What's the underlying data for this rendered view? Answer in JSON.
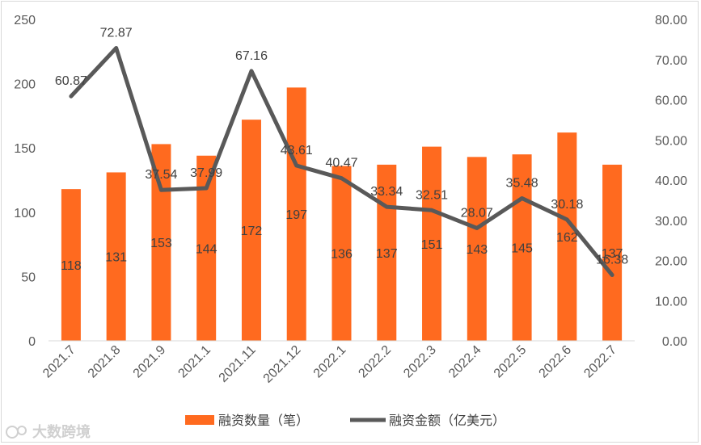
{
  "chart_data": {
    "type": "bar+line",
    "categories": [
      "2021.7",
      "2021.8",
      "2021.9",
      "2021.1",
      "2021.11",
      "2021.12",
      "2022.1",
      "2022.2",
      "2022.3",
      "2022.4",
      "2022.5",
      "2022.6",
      "2022.7"
    ],
    "series": [
      {
        "name": "融资数量（笔）",
        "type": "bar",
        "axis": "left",
        "color": "#ff6a1f",
        "values": [
          118,
          131,
          153,
          144,
          172,
          197,
          136,
          137,
          151,
          143,
          145,
          162,
          137
        ],
        "labels": [
          "118",
          "131",
          "153",
          "144",
          "172",
          "197",
          "136",
          "137",
          "151",
          "143",
          "145",
          "162",
          "137"
        ]
      },
      {
        "name": "融资金额（亿美元）",
        "type": "line",
        "axis": "right",
        "color": "#595959",
        "values": [
          60.87,
          72.87,
          37.54,
          37.99,
          67.16,
          43.61,
          40.47,
          33.34,
          32.51,
          28.07,
          35.48,
          30.18,
          16.38
        ],
        "labels": [
          "60.87",
          "72.87",
          "37.54",
          "37.99",
          "67.16",
          "43.61",
          "40.47",
          "33.34",
          "32.51",
          "28.07",
          "35.48",
          "30.18",
          "16.38"
        ]
      }
    ],
    "y_left": {
      "range": [
        0,
        250
      ],
      "ticks": [
        "0",
        "50",
        "100",
        "150",
        "200",
        "250"
      ]
    },
    "y_right": {
      "range": [
        0,
        80
      ],
      "ticks": [
        "0.00",
        "10.00",
        "20.00",
        "30.00",
        "40.00",
        "50.00",
        "60.00",
        "70.00",
        "80.00"
      ]
    },
    "grid": false,
    "legend_position": "bottom"
  },
  "watermark": {
    "text": "大数跨境",
    "icon": "logo-icon"
  }
}
